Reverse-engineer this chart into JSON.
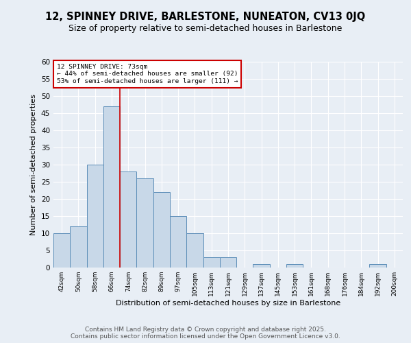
{
  "title": "12, SPINNEY DRIVE, BARLESTONE, NUNEATON, CV13 0JQ",
  "subtitle": "Size of property relative to semi-detached houses in Barlestone",
  "xlabel": "Distribution of semi-detached houses by size in Barlestone",
  "ylabel": "Number of semi-detached properties",
  "bar_labels": [
    "42sqm",
    "50sqm",
    "58sqm",
    "66sqm",
    "74sqm",
    "82sqm",
    "89sqm",
    "97sqm",
    "105sqm",
    "113sqm",
    "121sqm",
    "129sqm",
    "137sqm",
    "145sqm",
    "153sqm",
    "161sqm",
    "168sqm",
    "176sqm",
    "184sqm",
    "192sqm",
    "200sqm"
  ],
  "bar_values": [
    10,
    12,
    30,
    47,
    28,
    26,
    22,
    15,
    10,
    3,
    3,
    0,
    1,
    0,
    1,
    0,
    0,
    0,
    0,
    1,
    0
  ],
  "bar_color": "#c8d8e8",
  "bar_edge_color": "#5b8db8",
  "ylim": [
    0,
    60
  ],
  "yticks": [
    0,
    5,
    10,
    15,
    20,
    25,
    30,
    35,
    40,
    45,
    50,
    55,
    60
  ],
  "red_line_x": 3.5,
  "annotation_text": "12 SPINNEY DRIVE: 73sqm\n← 44% of semi-detached houses are smaller (92)\n53% of semi-detached houses are larger (111) →",
  "annotation_box_color": "#ffffff",
  "annotation_box_edge": "#cc0000",
  "red_line_color": "#cc0000",
  "footer_line1": "Contains HM Land Registry data © Crown copyright and database right 2025.",
  "footer_line2": "Contains public sector information licensed under the Open Government Licence v3.0.",
  "background_color": "#e8eef5",
  "plot_bg_color": "#e8eef5",
  "grid_color": "#ffffff",
  "title_fontsize": 10.5,
  "subtitle_fontsize": 9,
  "footer_fontsize": 6.5
}
